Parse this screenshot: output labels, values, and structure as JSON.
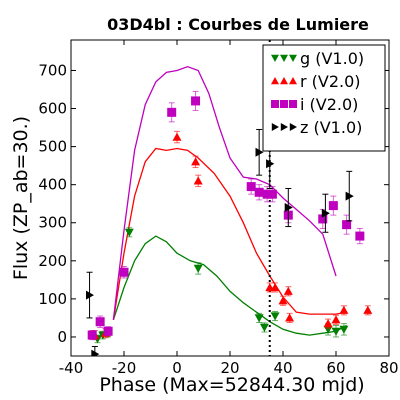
{
  "chart_data": {
    "type": "scatter",
    "title": "03D4bl : Courbes de Lumiere",
    "xlabel": "Phase (Max=52844.30 mjd)",
    "ylabel": "Flux (ZP_ab=30.)",
    "xlim": [
      -40,
      80
    ],
    "ylim": [
      -50,
      780
    ],
    "xticks": [
      -40,
      -20,
      0,
      20,
      40,
      60,
      80
    ],
    "yticks": [
      0,
      100,
      200,
      300,
      400,
      500,
      600,
      700
    ],
    "xtick_labels": [
      "-40",
      "-20",
      "0",
      "20",
      "40",
      "60",
      "80"
    ],
    "ytick_labels": [
      "0",
      "100",
      "200",
      "300",
      "400",
      "500",
      "600",
      "700"
    ],
    "vline": {
      "x": 35,
      "style": "dotted"
    },
    "legend_position": "top-right",
    "series": [
      {
        "name": "g (V1.0)",
        "color": "#008000",
        "marker": "triangle-down",
        "points": [
          {
            "x": -30,
            "y": -5,
            "err": 10
          },
          {
            "x": -28,
            "y": 5,
            "err": 10
          },
          {
            "x": -26,
            "y": 10,
            "err": 10
          },
          {
            "x": -18,
            "y": 275,
            "err": 12
          },
          {
            "x": 8,
            "y": 180,
            "err": 15
          },
          {
            "x": 31,
            "y": 50,
            "err": 12
          },
          {
            "x": 33,
            "y": 25,
            "err": 12
          },
          {
            "x": 37,
            "y": 55,
            "err": 12
          },
          {
            "x": 57,
            "y": 20,
            "err": 15
          },
          {
            "x": 60,
            "y": 15,
            "err": 15
          },
          {
            "x": 63,
            "y": 20,
            "err": 15
          }
        ],
        "curve": [
          {
            "x": -24,
            "y": 45
          },
          {
            "x": -20,
            "y": 130
          },
          {
            "x": -16,
            "y": 200
          },
          {
            "x": -12,
            "y": 245
          },
          {
            "x": -8,
            "y": 265
          },
          {
            "x": -4,
            "y": 250
          },
          {
            "x": 0,
            "y": 220
          },
          {
            "x": 5,
            "y": 200
          },
          {
            "x": 10,
            "y": 190
          },
          {
            "x": 15,
            "y": 160
          },
          {
            "x": 20,
            "y": 120
          },
          {
            "x": 25,
            "y": 90
          },
          {
            "x": 30,
            "y": 65
          },
          {
            "x": 35,
            "y": 40
          },
          {
            "x": 40,
            "y": 20
          },
          {
            "x": 45,
            "y": 10
          },
          {
            "x": 50,
            "y": 5
          },
          {
            "x": 55,
            "y": 10
          },
          {
            "x": 60,
            "y": 15
          },
          {
            "x": 64,
            "y": 30
          }
        ]
      },
      {
        "name": "r (V2.0)",
        "color": "#ff0000",
        "marker": "triangle-up",
        "points": [
          {
            "x": -31,
            "y": 5,
            "err": 12
          },
          {
            "x": -27,
            "y": 10,
            "err": 12
          },
          {
            "x": 0,
            "y": 525,
            "err": 15
          },
          {
            "x": 7,
            "y": 460,
            "err": 15
          },
          {
            "x": 8,
            "y": 410,
            "err": 15
          },
          {
            "x": 35,
            "y": 130,
            "err": 12
          },
          {
            "x": 37,
            "y": 130,
            "err": 12
          },
          {
            "x": 40,
            "y": 95,
            "err": 12
          },
          {
            "x": 42,
            "y": 120,
            "err": 12
          },
          {
            "x": 42.5,
            "y": 50,
            "err": 12
          },
          {
            "x": 57,
            "y": 35,
            "err": 12
          },
          {
            "x": 60,
            "y": 45,
            "err": 12
          },
          {
            "x": 63,
            "y": 70,
            "err": 12
          },
          {
            "x": 72,
            "y": 70,
            "err": 12
          }
        ],
        "curve": [
          {
            "x": -24,
            "y": 45
          },
          {
            "x": -20,
            "y": 220
          },
          {
            "x": -16,
            "y": 370
          },
          {
            "x": -12,
            "y": 460
          },
          {
            "x": -8,
            "y": 495
          },
          {
            "x": -4,
            "y": 490
          },
          {
            "x": 0,
            "y": 495
          },
          {
            "x": 4,
            "y": 490
          },
          {
            "x": 8,
            "y": 470
          },
          {
            "x": 14,
            "y": 430
          },
          {
            "x": 20,
            "y": 370
          },
          {
            "x": 25,
            "y": 300
          },
          {
            "x": 30,
            "y": 220
          },
          {
            "x": 35,
            "y": 160
          },
          {
            "x": 40,
            "y": 105
          },
          {
            "x": 45,
            "y": 65
          },
          {
            "x": 50,
            "y": 60
          },
          {
            "x": 55,
            "y": 60
          },
          {
            "x": 60,
            "y": 60
          },
          {
            "x": 64,
            "y": 65
          }
        ]
      },
      {
        "name": "i (V2.0)",
        "color": "#bf00bf",
        "marker": "square",
        "points": [
          {
            "x": -32,
            "y": 5,
            "err": 12
          },
          {
            "x": -29,
            "y": 40,
            "err": 15
          },
          {
            "x": -26,
            "y": 15,
            "err": 12
          },
          {
            "x": -20,
            "y": 170,
            "err": 15
          },
          {
            "x": -2,
            "y": 590,
            "err": 25
          },
          {
            "x": 7,
            "y": 620,
            "err": 25
          },
          {
            "x": 28,
            "y": 395,
            "err": 20
          },
          {
            "x": 31,
            "y": 380,
            "err": 20
          },
          {
            "x": 34,
            "y": 375,
            "err": 20
          },
          {
            "x": 36,
            "y": 375,
            "err": 20
          },
          {
            "x": 42,
            "y": 320,
            "err": 20
          },
          {
            "x": 55,
            "y": 310,
            "err": 25
          },
          {
            "x": 59,
            "y": 345,
            "err": 25
          },
          {
            "x": 64,
            "y": 295,
            "err": 25
          },
          {
            "x": 69,
            "y": 265,
            "err": 20
          }
        ],
        "curve": [
          {
            "x": -24,
            "y": 45
          },
          {
            "x": -20,
            "y": 280
          },
          {
            "x": -16,
            "y": 490
          },
          {
            "x": -12,
            "y": 610
          },
          {
            "x": -8,
            "y": 670
          },
          {
            "x": -4,
            "y": 695
          },
          {
            "x": 0,
            "y": 700
          },
          {
            "x": 4,
            "y": 710
          },
          {
            "x": 8,
            "y": 700
          },
          {
            "x": 12,
            "y": 640
          },
          {
            "x": 16,
            "y": 550
          },
          {
            "x": 20,
            "y": 470
          },
          {
            "x": 25,
            "y": 420
          },
          {
            "x": 30,
            "y": 415
          },
          {
            "x": 35,
            "y": 400
          },
          {
            "x": 40,
            "y": 365
          },
          {
            "x": 45,
            "y": 335
          },
          {
            "x": 50,
            "y": 305
          },
          {
            "x": 55,
            "y": 270
          },
          {
            "x": 60,
            "y": 160
          }
        ]
      },
      {
        "name": "z (V1.0)",
        "color": "#000000",
        "marker": "triangle-right",
        "points": [
          {
            "x": -33,
            "y": 110,
            "err": 60
          },
          {
            "x": -31,
            "y": -45,
            "err": 20
          },
          {
            "x": 31,
            "y": 485,
            "err": 60
          },
          {
            "x": 35,
            "y": 455,
            "err": 65
          },
          {
            "x": 42,
            "y": 340,
            "err": 50
          },
          {
            "x": 56,
            "y": 325,
            "err": 50
          },
          {
            "x": 65,
            "y": 370,
            "err": 65
          }
        ],
        "curve": []
      }
    ]
  }
}
